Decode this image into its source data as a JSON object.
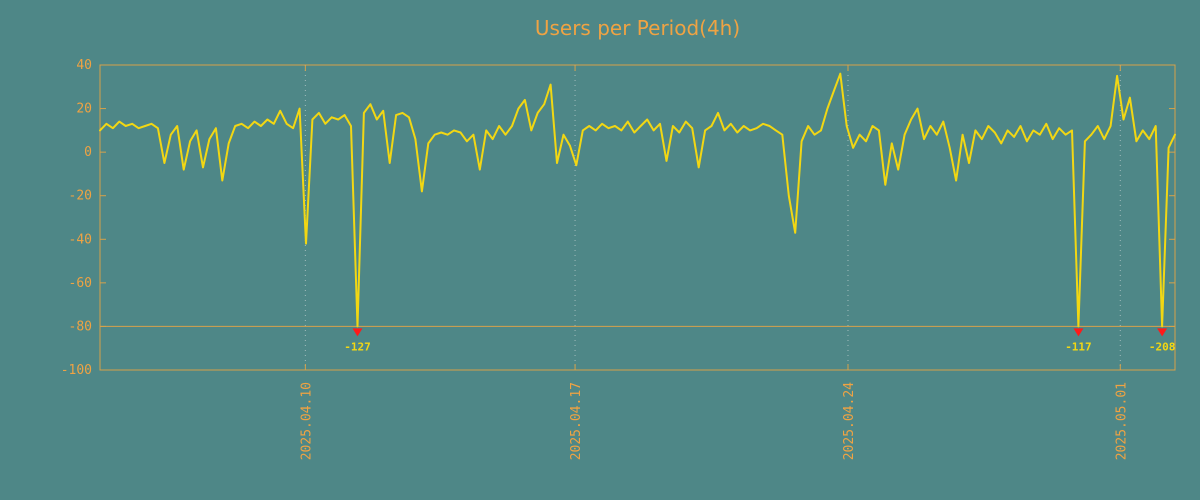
{
  "colors": {
    "background": "#4e8787",
    "text": "#efa343",
    "line": "#f2d713",
    "grid": "#cfd8d8",
    "border": "#d7a24a",
    "clip_line": "#d7a24a",
    "marker": "#ff1a1a",
    "marker_label": "#f2d713"
  },
  "chart_data": {
    "type": "line",
    "title": "Users per Period(4h)",
    "xlabel": "",
    "ylabel": "",
    "ylim": [
      -100,
      40
    ],
    "yticks": [
      40,
      20,
      0,
      -20,
      -40,
      -60,
      -80,
      -100
    ],
    "xticks": [
      {
        "label": "2025.04.10",
        "pos": 31.9
      },
      {
        "label": "2025.04.17",
        "pos": 73.8
      },
      {
        "label": "2025.04.24",
        "pos": 116.2
      },
      {
        "label": "2025.05.01",
        "pos": 158.5
      }
    ],
    "grid": "vertical-dotted",
    "legend": "none",
    "clip_value": -80,
    "values": [
      10,
      13,
      11,
      14,
      12,
      13,
      11,
      12,
      13,
      11,
      -5,
      8,
      12,
      -8,
      5,
      10,
      -7,
      6,
      11,
      -13,
      4,
      12,
      13,
      11,
      14,
      12,
      15,
      13,
      19,
      13,
      11,
      20,
      -42,
      15,
      18,
      13,
      16,
      15,
      17,
      12,
      -127,
      18,
      22,
      15,
      19,
      -5,
      17,
      18,
      16,
      6,
      -18,
      4,
      8,
      9,
      8,
      10,
      9,
      5,
      8,
      -8,
      10,
      6,
      12,
      8,
      12,
      20,
      24,
      10,
      18,
      22,
      31,
      -5,
      8,
      3,
      -6,
      10,
      12,
      10,
      13,
      11,
      12,
      10,
      14,
      9,
      12,
      15,
      10,
      13,
      -4,
      12,
      9,
      14,
      11,
      -7,
      10,
      12,
      18,
      10,
      13,
      9,
      12,
      10,
      11,
      13,
      12,
      10,
      8,
      -20,
      -37,
      5,
      12,
      8,
      10,
      20,
      28,
      36,
      12,
      2,
      8,
      5,
      12,
      10,
      -15,
      4,
      -8,
      8,
      15,
      20,
      6,
      12,
      8,
      14,
      2,
      -13,
      8,
      -5,
      10,
      6,
      12,
      9,
      4,
      10,
      7,
      12,
      5,
      10,
      8,
      13,
      6,
      11,
      8,
      10,
      -117,
      5,
      8,
      12,
      6,
      12,
      35,
      15,
      25,
      5,
      10,
      6,
      12,
      -208,
      2,
      8
    ],
    "min_markers": [
      {
        "index": 40,
        "label": "-127"
      },
      {
        "index": 152,
        "label": "-117"
      },
      {
        "index": 165,
        "label": "-208"
      }
    ]
  }
}
